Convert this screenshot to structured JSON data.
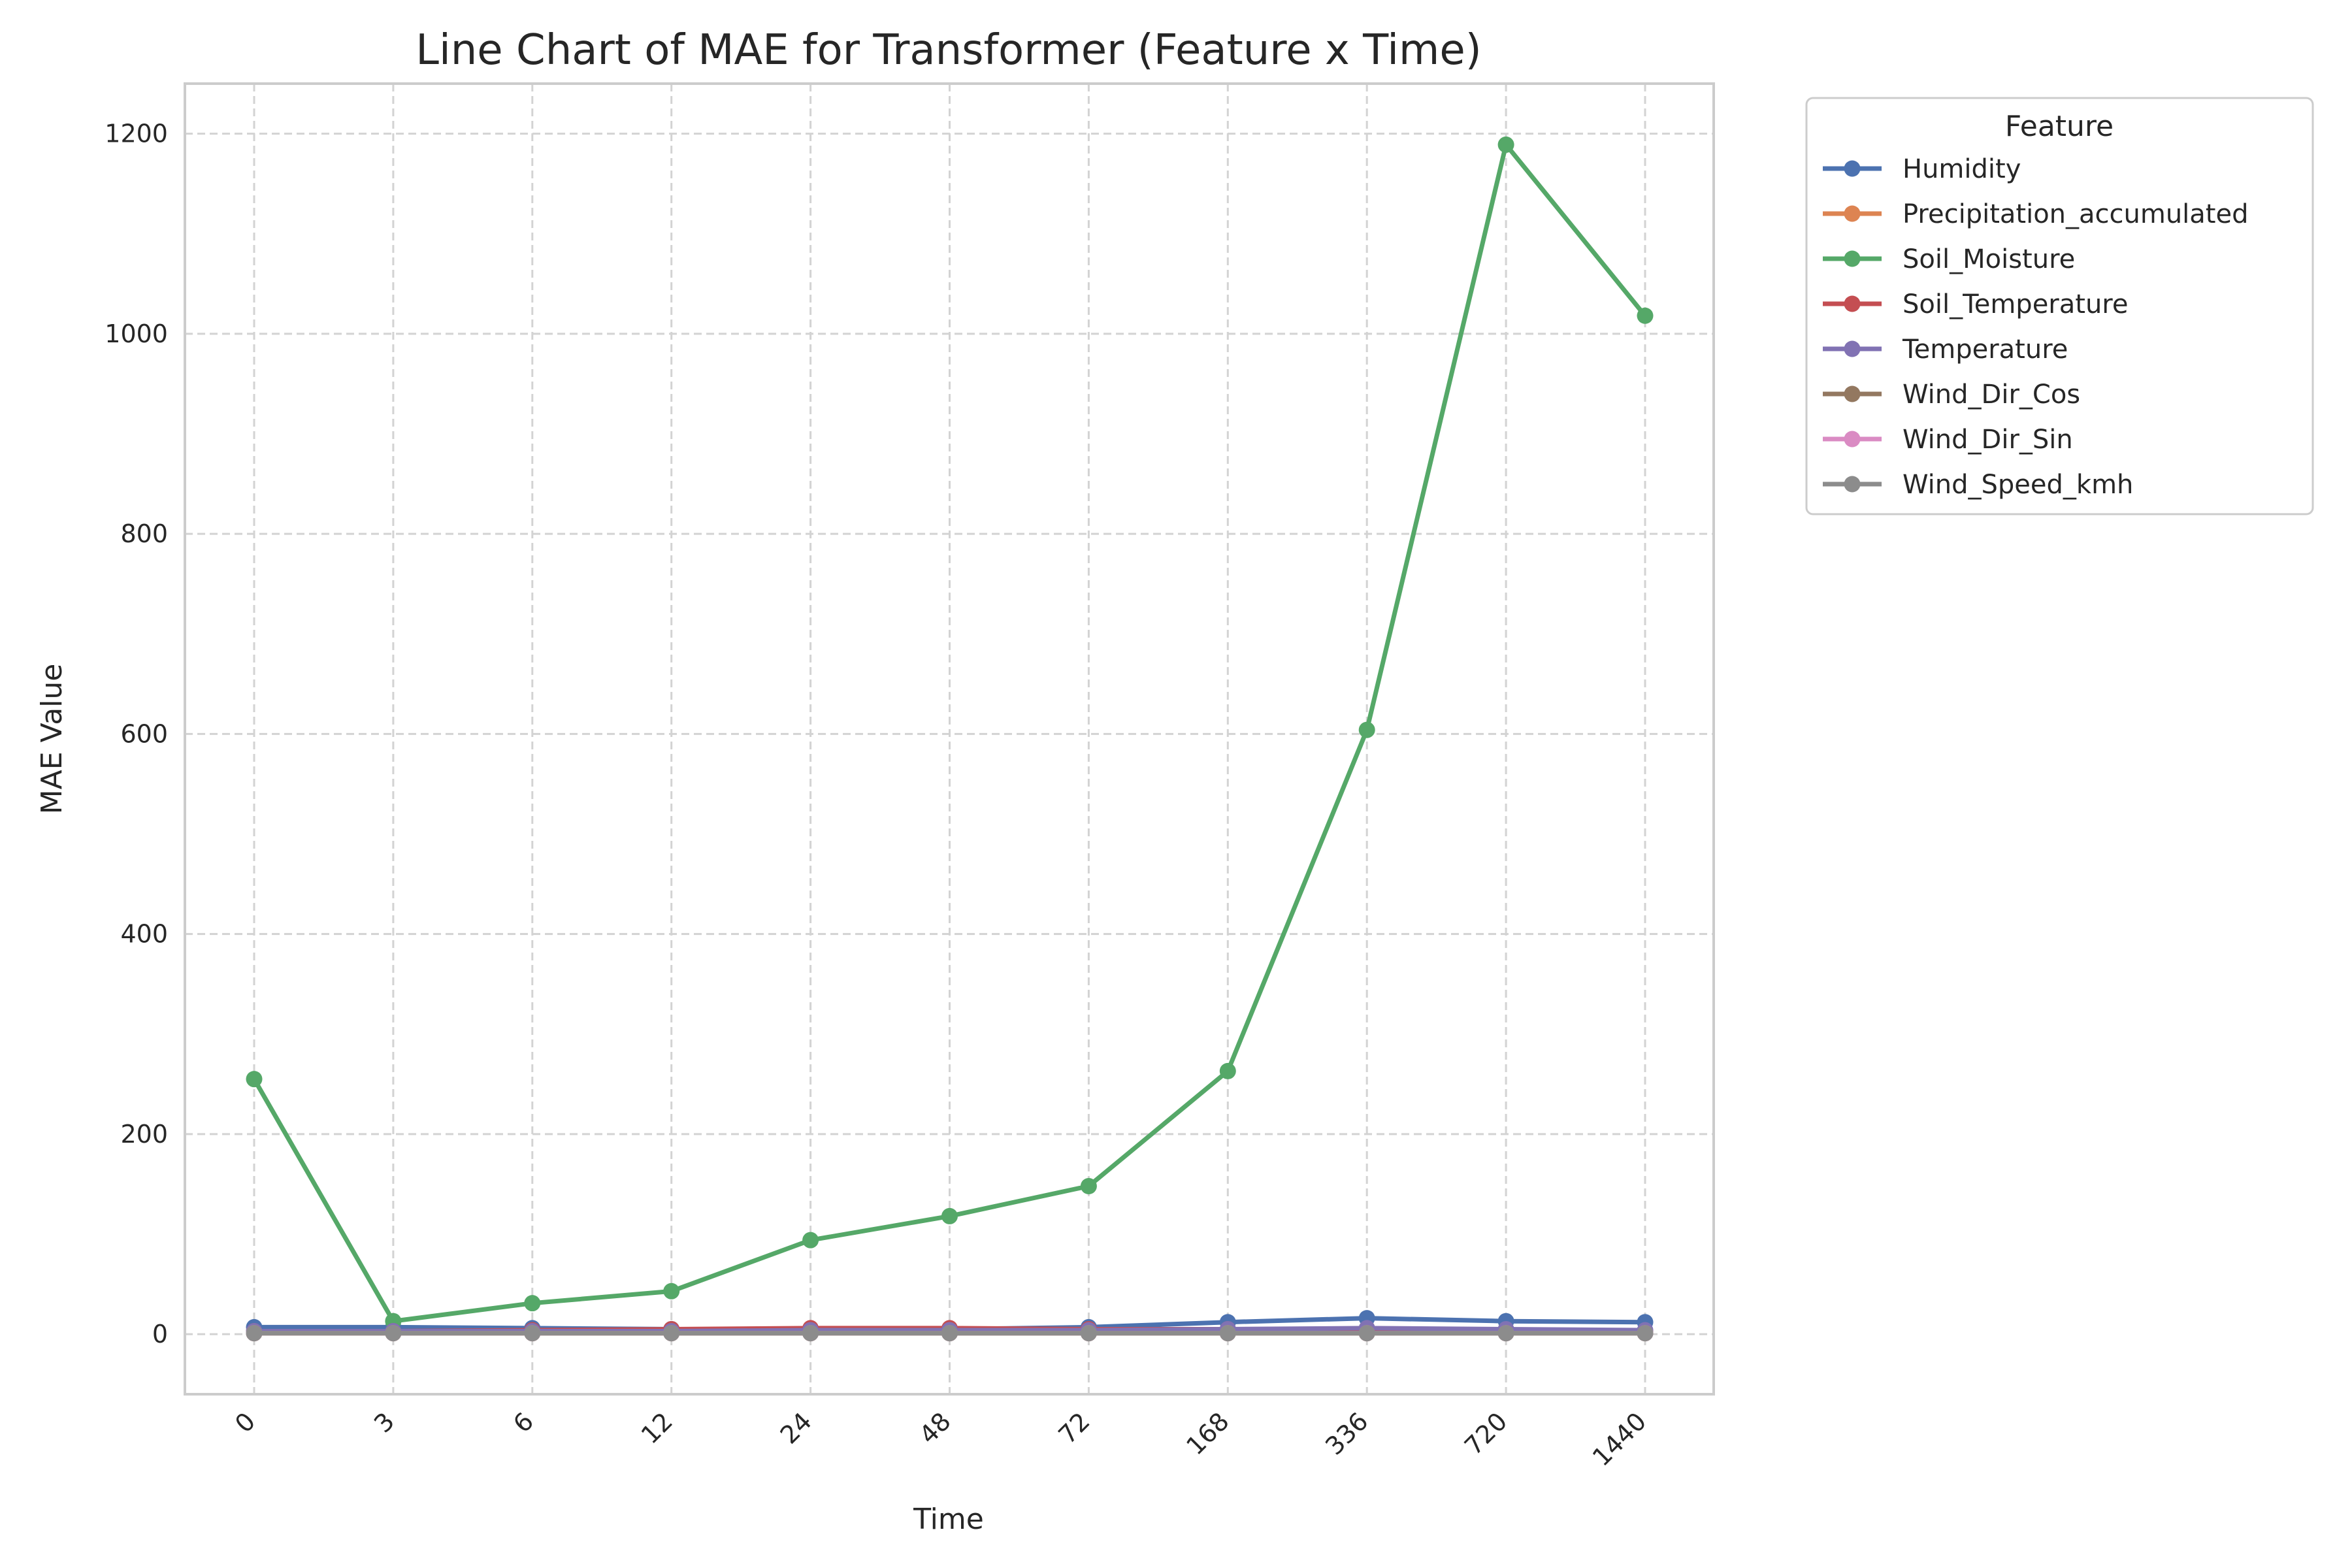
{
  "chart_data": {
    "type": "line",
    "title": "Line Chart of MAE for Transformer (Feature x Time)",
    "xlabel": "Time",
    "ylabel": "MAE Value",
    "categories": [
      "0",
      "3",
      "6",
      "12",
      "24",
      "48",
      "72",
      "168",
      "336",
      "720",
      "1440"
    ],
    "ylim": [
      -60,
      1250
    ],
    "yticks": [
      0,
      200,
      400,
      600,
      800,
      1000,
      1200
    ],
    "grid": true,
    "legend": {
      "title": "Feature",
      "placement": "outside top-right"
    },
    "series": [
      {
        "name": "Humidity",
        "color": "#4c72b0",
        "values": [
          7,
          7,
          6,
          5,
          5,
          5,
          7,
          12,
          16,
          13,
          12
        ]
      },
      {
        "name": "Precipitation_accumulated",
        "color": "#dd8452",
        "values": [
          1,
          1,
          1,
          1,
          1,
          1,
          1,
          1,
          1,
          1,
          1
        ]
      },
      {
        "name": "Soil_Moisture",
        "color": "#55a868",
        "values": [
          255,
          13,
          31,
          43,
          94,
          118,
          148,
          263,
          604,
          1189,
          1018
        ]
      },
      {
        "name": "Soil_Temperature",
        "color": "#c44e52",
        "values": [
          3,
          3,
          4,
          5,
          6,
          6,
          5,
          5,
          5,
          4,
          3
        ]
      },
      {
        "name": "Temperature",
        "color": "#8172b3",
        "values": [
          3,
          3,
          3,
          3,
          4,
          4,
          4,
          5,
          6,
          5,
          4
        ]
      },
      {
        "name": "Wind_Dir_Cos",
        "color": "#937860",
        "values": [
          1,
          1,
          1,
          1,
          1,
          1,
          1,
          1,
          1,
          1,
          1
        ]
      },
      {
        "name": "Wind_Dir_Sin",
        "color": "#da8bc3",
        "values": [
          1,
          1,
          1,
          1,
          1,
          1,
          1,
          1,
          1,
          1,
          1
        ]
      },
      {
        "name": "Wind_Speed_kmh",
        "color": "#8c8c8c",
        "values": [
          1,
          1,
          1,
          1,
          1,
          1,
          1,
          1,
          1,
          1,
          1
        ]
      }
    ]
  }
}
